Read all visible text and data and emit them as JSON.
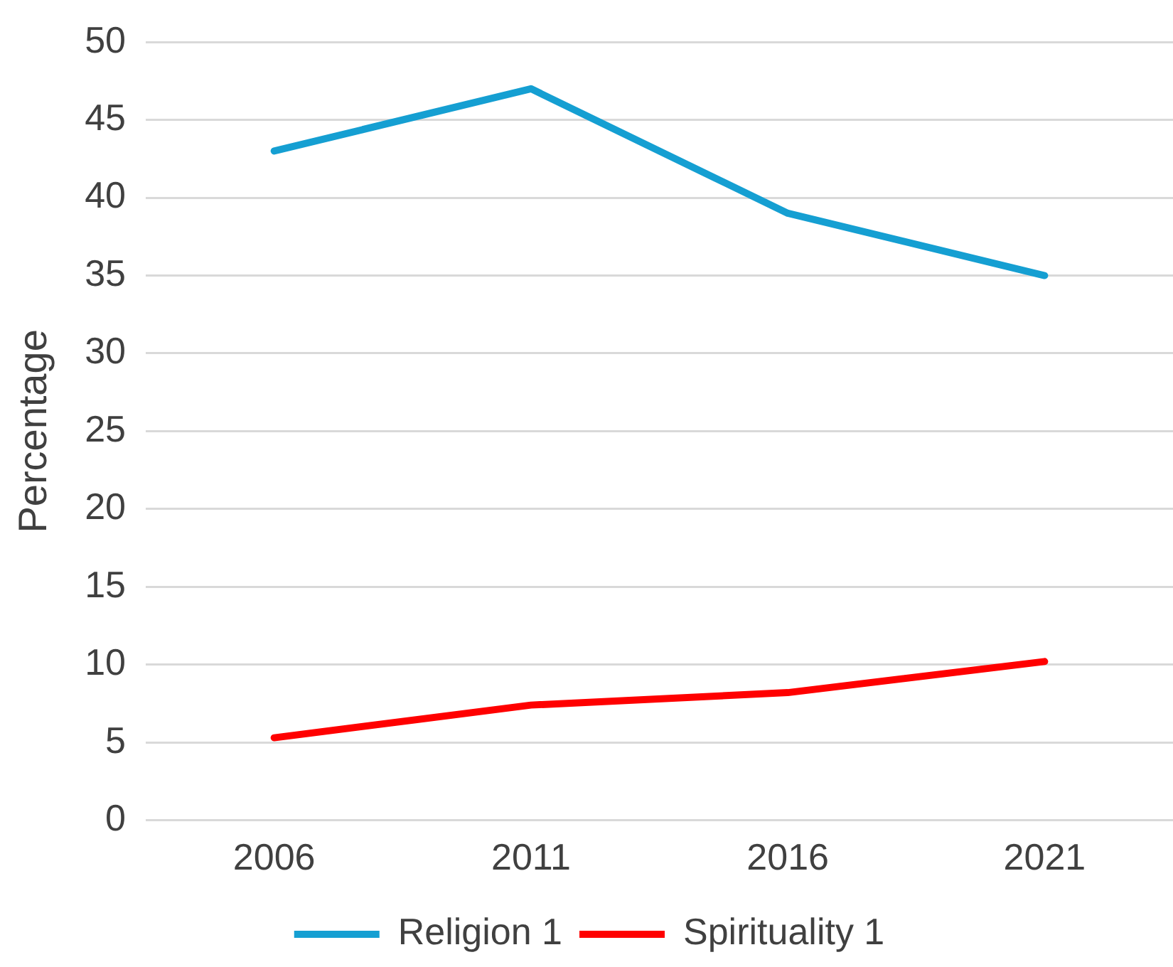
{
  "chart_data": {
    "type": "line",
    "ylabel": "Percentage",
    "categories": [
      "2006",
      "2011",
      "2016",
      "2021"
    ],
    "series": [
      {
        "name": "Religion 1",
        "color": "#159fd2",
        "values": [
          43,
          47,
          39,
          35
        ]
      },
      {
        "name": "Spirituality 1",
        "color": "#ff0000",
        "values": [
          5.3,
          7.4,
          8.2,
          10.2
        ]
      }
    ],
    "ylim": [
      0,
      50
    ],
    "yticks": [
      0,
      5,
      10,
      15,
      20,
      25,
      30,
      35,
      40,
      45,
      50
    ],
    "grid": "y",
    "legend": "bottom",
    "marker": "none",
    "line_style": "solid"
  }
}
